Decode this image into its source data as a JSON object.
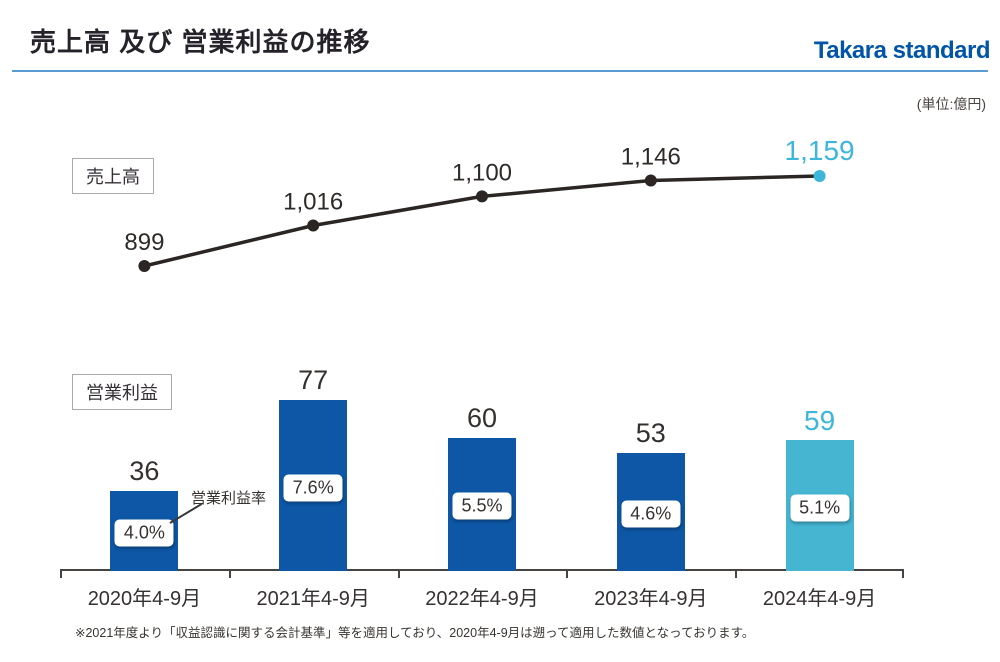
{
  "header": {
    "title": "売上高 及び 営業利益の推移",
    "logo": "Takara standard"
  },
  "unit_label": "(単位:億円)",
  "annotation": {
    "operating_margin_label": "営業利益率"
  },
  "footnote": "※2021年度より「収益認識に関する会計基準」等を適用しており、2020年4-9月は遡って適用した数値となっております。",
  "colors": {
    "bar_blue": "#0d57a6",
    "highlight_cyan_bar": "#45b5d2",
    "highlight_cyan_text": "#3cb6da",
    "line_black": "#2b2623",
    "value_text": "#33302e",
    "logo_blue": "#0055a8",
    "rule_blue": "#5b9ad2",
    "axis_gray": "#474340"
  },
  "chart_data": [
    {
      "type": "line",
      "name": "売上高",
      "title": "売上高の推移",
      "categories": [
        "2020年4-9月",
        "2021年4-9月",
        "2022年4-9月",
        "2023年4-9月",
        "2024年4-9月"
      ],
      "values": [
        899,
        1016,
        1100,
        1146,
        1159
      ],
      "value_labels": [
        "899",
        "1,016",
        "1,100",
        "1,146",
        "1,159"
      ],
      "unit": "億円",
      "highlight_last": true,
      "legend_position": "left-box",
      "grid": false
    },
    {
      "type": "bar",
      "name": "営業利益",
      "title": "営業利益の推移",
      "categories": [
        "2020年4-9月",
        "2021年4-9月",
        "2022年4-9月",
        "2023年4-9月",
        "2024年4-9月"
      ],
      "values": [
        36,
        77,
        60,
        53,
        59
      ],
      "value_labels": [
        "36",
        "77",
        "60",
        "53",
        "59"
      ],
      "margin_series_name": "営業利益率",
      "margin_labels": [
        "4.0%",
        "7.6%",
        "5.5%",
        "4.6%",
        "5.1%"
      ],
      "unit": "億円",
      "highlight_last": true,
      "legend_position": "left-box",
      "grid": false
    }
  ]
}
